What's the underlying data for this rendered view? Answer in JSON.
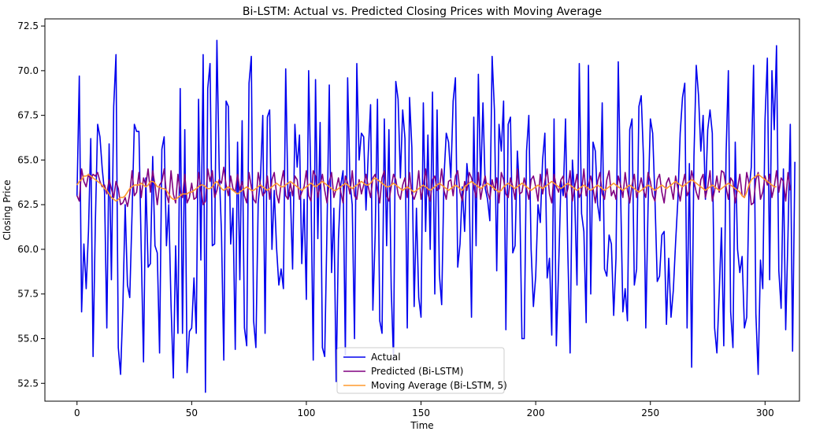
{
  "chart_data": {
    "type": "line",
    "title": "Bi-LSTM: Actual vs. Predicted Closing Prices with Moving Average",
    "xlabel": "Time",
    "ylabel": "Closing Price",
    "xlim": [
      -14,
      315
    ],
    "ylim": [
      51.5,
      72.9
    ],
    "xticks": [
      0,
      50,
      100,
      150,
      200,
      250,
      300
    ],
    "yticks": [
      52.5,
      55.0,
      57.5,
      60.0,
      62.5,
      65.0,
      67.5,
      70.0,
      72.5
    ],
    "grid": false,
    "legend_position": "lower-center",
    "series": [
      {
        "name": "Actual",
        "color": "#0000ee",
        "values": [
          63.0,
          69.7,
          56.5,
          60.3,
          57.8,
          61.0,
          66.2,
          54.0,
          61.5,
          67.0,
          66.3,
          64.5,
          63.2,
          55.6,
          65.9,
          58.3,
          68.0,
          70.9,
          54.5,
          53.0,
          56.8,
          62.5,
          58.0,
          57.3,
          62.0,
          67.0,
          66.6,
          66.6,
          60.0,
          53.7,
          64.0,
          59.0,
          59.2,
          65.2,
          60.2,
          59.8,
          54.2,
          65.6,
          66.3,
          60.2,
          62.5,
          56.9,
          52.8,
          60.2,
          55.3,
          69.0,
          55.3,
          66.7,
          53.1,
          55.4,
          55.6,
          58.4,
          55.3,
          68.4,
          59.4,
          70.9,
          52.0,
          69.0,
          70.4,
          60.2,
          60.3,
          71.7,
          64.5,
          60.9,
          53.8,
          68.3,
          68.0,
          60.3,
          62.3,
          54.4,
          66.0,
          58.3,
          67.2,
          55.6,
          54.6,
          69.3,
          70.8,
          56.0,
          54.5,
          62.6,
          64.0,
          67.5,
          55.3,
          67.4,
          67.8,
          60.0,
          63.3,
          60.1,
          58.0,
          58.9,
          57.8,
          70.1,
          62.8,
          63.2,
          58.9,
          67.0,
          64.6,
          66.4,
          59.2,
          62.8,
          57.2,
          70.0,
          63.5,
          53.8,
          69.5,
          60.6,
          67.1,
          54.5,
          54.0,
          61.2,
          69.2,
          58.7,
          62.3,
          52.6,
          60.6,
          63.6,
          64.4,
          54.1,
          69.6,
          63.8,
          62.5,
          55.0,
          70.4,
          65.0,
          66.5,
          66.3,
          62.2,
          65.4,
          68.1,
          56.6,
          60.8,
          68.4,
          56.0,
          55.3,
          67.3,
          60.2,
          66.7,
          57.8,
          53.8,
          69.4,
          68.4,
          64.0,
          67.8,
          66.2,
          55.6,
          68.5,
          65.7,
          56.8,
          62.3,
          57.3,
          56.2,
          68.2,
          61.0,
          66.4,
          60.0,
          68.8,
          57.5,
          67.8,
          58.6,
          56.9,
          64.0,
          66.5,
          66.0,
          64.0,
          68.3,
          69.6,
          59.0,
          60.3,
          63.5,
          61.0,
          64.8,
          63.3,
          56.2,
          67.4,
          60.2,
          69.8,
          63.6,
          68.2,
          63.4,
          62.8,
          61.6,
          70.8,
          67.8,
          58.8,
          67.0,
          65.5,
          68.3,
          55.5,
          67.0,
          67.4,
          59.8,
          60.2,
          65.5,
          63.2,
          55.0,
          55.0,
          65.5,
          67.5,
          60.0,
          56.8,
          58.5,
          62.5,
          61.5,
          65.0,
          66.5,
          58.4,
          59.5,
          55.2,
          67.3,
          54.6,
          59.0,
          63.8,
          63.0,
          67.3,
          59.9,
          54.2,
          65.0,
          62.9,
          58.0,
          70.4,
          62.0,
          61.0,
          55.9,
          70.3,
          57.5,
          66.0,
          65.5,
          62.5,
          61.6,
          68.2,
          58.9,
          58.5,
          60.8,
          60.3,
          56.3,
          59.5,
          70.5,
          63.3,
          56.5,
          57.8,
          56.0,
          66.7,
          67.3,
          58.0,
          58.9,
          68.0,
          68.6,
          65.1,
          55.6,
          62.5,
          67.3,
          66.5,
          62.8,
          58.2,
          58.5,
          60.8,
          61.0,
          55.8,
          59.5,
          56.2,
          57.7,
          60.4,
          62.8,
          66.5,
          68.5,
          69.3,
          55.6,
          64.8,
          53.4,
          65.2,
          70.3,
          68.6,
          65.5,
          67.5,
          62.8,
          66.7,
          67.8,
          66.5,
          55.6,
          54.2,
          57.5,
          61.2,
          54.6,
          65.3,
          70.0,
          56.5,
          54.5,
          66.0,
          60.0,
          58.7,
          59.6,
          55.6,
          56.2,
          63.3,
          64.6,
          70.3,
          56.4,
          53.0,
          59.4,
          57.8,
          67.3,
          70.7,
          58.3,
          70.0,
          66.7,
          71.4,
          58.8,
          56.7,
          64.5,
          55.5,
          60.8,
          67.0,
          54.3,
          64.9
        ]
      },
      {
        "name": "Predicted (Bi-LSTM)",
        "color": "#800080",
        "values": [
          63.0,
          62.7,
          64.5,
          63.8,
          63.5,
          64.2,
          63.9,
          64.2,
          64.1,
          64.3,
          63.8,
          63.5,
          63.6,
          63.1,
          63.9,
          63.4,
          62.9,
          63.8,
          63.4,
          62.5,
          62.6,
          62.9,
          62.4,
          63.1,
          64.4,
          63.0,
          63.2,
          64.3,
          62.9,
          64.0,
          63.6,
          64.5,
          63.2,
          64.4,
          63.6,
          62.5,
          63.6,
          63.8,
          64.5,
          63.1,
          62.6,
          64.4,
          63.1,
          62.6,
          64.2,
          63.2,
          62.9,
          64.2,
          62.6,
          62.9,
          63.7,
          62.8,
          62.9,
          64.3,
          63.4,
          62.5,
          62.7,
          64.5,
          63.8,
          64.4,
          62.9,
          63.3,
          63.9,
          63.7,
          64.6,
          63.6,
          63.0,
          64.1,
          63.4,
          63.2,
          64.2,
          63.3,
          63.8,
          63.0,
          62.6,
          64.3,
          63.5,
          62.8,
          62.6,
          64.3,
          63.6,
          63.0,
          63.2,
          64.1,
          62.8,
          63.9,
          64.3,
          63.1,
          62.6,
          63.7,
          64.4,
          63.0,
          62.8,
          63.7,
          63.0,
          64.1,
          63.9,
          62.8,
          63.2,
          63.5,
          64.4,
          63.0,
          62.7,
          64.4,
          64.1,
          62.9,
          63.6,
          64.2,
          63.3,
          62.6,
          63.8,
          64.3,
          62.9,
          63.4,
          64.0,
          63.2,
          62.6,
          64.1,
          63.7,
          63.1,
          64.4,
          63.0,
          62.8,
          63.9,
          63.1,
          63.6,
          64.2,
          63.5,
          62.9,
          64.0,
          64.2,
          63.3,
          62.6,
          64.0,
          64.4,
          63.0,
          62.7,
          63.5,
          64.2,
          63.9,
          63.1,
          62.8,
          63.6,
          64.0,
          62.9,
          64.3,
          63.1,
          62.8,
          63.2,
          64.4,
          62.8,
          63.5,
          64.5,
          63.1,
          62.7,
          63.9,
          64.1,
          63.3,
          63.4,
          64.5,
          63.3,
          62.8,
          63.8,
          63.9,
          63.0,
          64.1,
          64.4,
          63.2,
          62.7,
          63.8,
          63.3,
          64.3,
          64.0,
          63.5,
          62.9,
          64.3,
          62.8,
          63.6,
          64.1,
          63.2,
          62.8,
          63.9,
          63.3,
          64.0,
          62.6,
          64.3,
          63.9,
          63.1,
          62.9,
          64.0,
          63.5,
          62.8,
          64.5,
          63.1,
          63.2,
          64.0,
          63.4,
          62.8,
          63.9,
          64.1,
          63.5,
          62.7,
          64.2,
          63.1,
          63.8,
          64.5,
          63.1,
          62.6,
          64.2,
          63.5,
          63.2,
          63.9,
          64.1,
          62.9,
          63.4,
          64.4,
          62.7,
          63.5,
          64.2,
          62.9,
          63.2,
          64.5,
          63.0,
          63.6,
          64.1,
          63.4,
          62.6,
          63.8,
          64.3,
          63.1,
          62.8,
          63.9,
          64.4,
          63.0,
          63.3,
          62.8,
          64.1,
          63.6,
          62.9,
          64.3,
          63.3,
          62.6,
          63.6,
          64.2,
          62.9,
          63.4,
          64.0,
          63.3,
          62.9,
          64.3,
          63.8,
          63.0,
          62.7,
          63.9,
          64.2,
          63.2,
          62.6,
          63.7,
          64.0,
          63.5,
          62.8,
          64.1,
          63.4,
          62.7,
          63.6,
          64.2,
          63.0,
          63.3,
          64.4,
          63.8,
          63.2,
          62.8,
          63.9,
          64.2,
          62.9,
          63.5,
          64.4,
          62.7,
          63.3,
          64.1,
          63.2,
          64.4,
          64.3,
          63.5,
          62.8,
          64.0,
          63.8,
          62.6,
          63.4,
          64.2,
          63.0,
          62.9,
          64.3,
          63.7,
          62.5,
          62.6,
          63.9,
          64.3,
          62.8,
          63.2,
          64.1,
          63.6,
          64.2,
          62.9,
          63.5,
          64.4,
          63.2,
          64.0,
          63.8,
          62.7,
          64.3,
          63.3
        ]
      },
      {
        "name": "Moving Average (Bi-LSTM, 5)",
        "color": "#ff9a2e",
        "values": [
          63.6,
          63.8,
          63.9,
          64.1,
          64.1,
          64.2,
          64.1,
          64.0,
          63.9,
          63.8,
          63.7,
          63.6,
          63.4,
          63.3,
          63.1,
          62.9,
          62.8,
          62.7,
          62.8,
          62.9,
          62.9,
          63.0,
          63.2,
          63.4,
          63.5,
          63.6,
          63.6,
          63.6,
          63.7,
          63.6,
          63.5,
          63.6,
          63.8,
          63.8,
          63.7,
          63.5,
          63.5,
          63.4,
          63.4,
          63.3,
          63.1,
          62.9,
          62.8,
          62.8,
          62.9,
          63.0,
          63.1,
          63.1,
          63.1,
          63.2,
          63.2,
          63.3,
          63.4,
          63.5,
          63.6,
          63.6,
          63.5,
          63.4,
          63.4,
          63.5,
          63.7,
          63.8,
          63.6,
          63.4,
          63.3,
          63.4,
          63.5,
          63.4,
          63.3,
          63.2,
          63.1,
          63.2,
          63.3,
          63.4,
          63.5,
          63.4,
          63.3,
          63.3,
          63.4,
          63.5,
          63.6,
          63.5,
          63.4,
          63.3,
          63.4,
          63.5,
          63.6,
          63.7,
          63.6,
          63.5,
          63.5,
          63.6,
          63.7,
          63.8,
          63.7,
          63.6,
          63.5,
          63.4,
          63.3,
          63.4,
          63.5,
          63.6,
          63.7,
          63.6,
          63.5,
          63.6,
          63.7,
          63.8,
          63.7,
          63.6,
          63.5,
          63.4,
          63.3,
          63.3,
          63.4,
          63.5,
          63.6,
          63.7,
          63.6,
          63.5,
          63.4,
          63.5,
          63.6,
          63.7,
          63.8,
          63.7,
          63.6,
          63.6,
          63.7,
          63.9,
          64.0,
          63.9,
          63.8,
          63.7,
          63.6,
          63.5,
          63.5,
          63.6,
          63.7,
          63.6,
          63.5,
          63.4,
          63.3,
          63.4,
          63.5,
          63.4,
          63.3,
          63.2,
          63.3,
          63.4,
          63.5,
          63.6,
          63.5,
          63.4,
          63.3,
          63.4,
          63.5,
          63.6,
          63.7,
          63.6,
          63.5,
          63.4,
          63.3,
          63.4,
          63.5,
          63.6,
          63.5,
          63.4,
          63.3,
          63.5,
          63.6,
          63.7,
          63.8,
          63.7,
          63.6,
          63.5,
          63.4,
          63.5,
          63.6,
          63.7,
          63.6,
          63.5,
          63.4,
          63.3,
          63.2,
          63.3,
          63.5,
          63.6,
          63.7,
          63.6,
          63.5,
          63.4,
          63.5,
          63.6,
          63.7,
          63.6,
          63.5,
          63.4,
          63.3,
          63.4,
          63.5,
          63.6,
          63.5,
          63.4,
          63.5,
          63.6,
          63.7,
          63.8,
          63.7,
          63.6,
          63.5,
          63.4,
          63.5,
          63.6,
          63.7,
          63.6,
          63.5,
          63.4,
          63.3,
          63.4,
          63.5,
          63.6,
          63.5,
          63.4,
          63.3,
          63.4,
          63.5,
          63.6,
          63.5,
          63.4,
          63.3,
          63.4,
          63.5,
          63.6,
          63.7,
          63.6,
          63.5,
          63.4,
          63.3,
          63.4,
          63.5,
          63.6,
          63.5,
          63.4,
          63.3,
          63.2,
          63.3,
          63.4,
          63.5,
          63.6,
          63.5,
          63.4,
          63.3,
          63.4,
          63.5,
          63.6,
          63.5,
          63.4,
          63.5,
          63.6,
          63.7,
          63.8,
          63.7,
          63.6,
          63.5,
          63.6,
          63.7,
          63.8,
          63.9,
          63.8,
          63.7,
          63.6,
          63.5,
          63.4,
          63.3,
          63.4,
          63.5,
          63.6,
          63.5,
          63.4,
          63.3,
          63.4,
          63.5,
          63.6,
          63.7,
          63.6,
          63.5,
          63.4,
          63.3,
          63.2,
          63.0,
          62.9,
          63.2,
          63.6,
          63.9,
          64.0,
          64.1,
          64.2,
          64.1,
          64.0,
          63.9,
          63.8,
          63.7,
          63.6,
          63.5,
          63.5
        ]
      }
    ]
  }
}
